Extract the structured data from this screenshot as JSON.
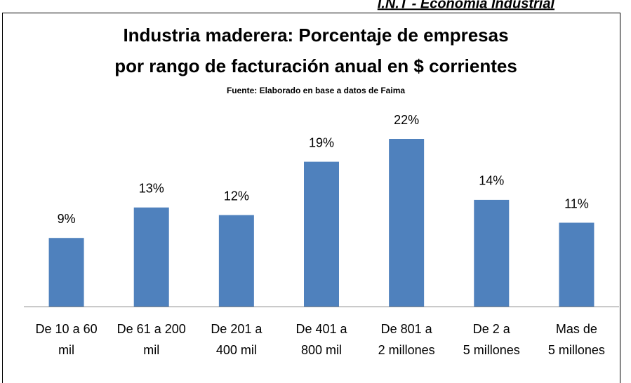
{
  "header": "I.N.T - Economía Industrial",
  "chart_data": {
    "type": "bar",
    "title": [
      "Industria maderera: Porcentaje de empresas",
      "por rango de facturación anual en $ corrientes"
    ],
    "subtitle": "Fuente: Elaborado en base a datos de Faima",
    "categories": [
      [
        "De 10 a 60",
        "mil"
      ],
      [
        "De 61 a 200",
        "mil"
      ],
      [
        "De 201 a",
        "400 mil"
      ],
      [
        "De 401 a",
        "800 mil"
      ],
      [
        "De 801 a",
        "2 millones"
      ],
      [
        "De 2 a",
        "5 millones"
      ],
      [
        "Mas de",
        "5 millones"
      ]
    ],
    "values": [
      9,
      13,
      12,
      19,
      22,
      14,
      11
    ],
    "value_labels": [
      "9%",
      "13%",
      "12%",
      "19%",
      "22%",
      "14%",
      "11%"
    ],
    "color": "#4f81bd"
  }
}
